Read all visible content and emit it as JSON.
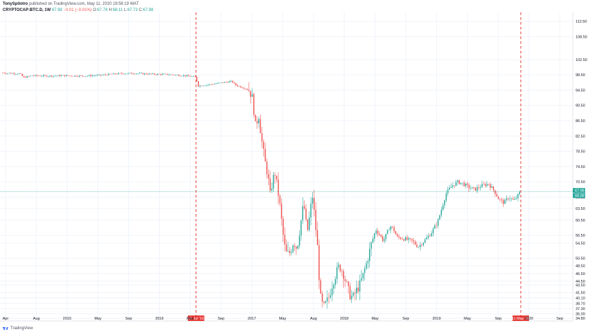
{
  "header": {
    "author": "TonySpilotro",
    "published": "published on TradingView.com, May 11, 2020 19:58:19 WAT",
    "symbol": "CRYPTOCAP:BTC.D, 1W",
    "last": "67.98",
    "change": "−0.01 (−0.01%)",
    "o_label": "O:",
    "o_value": "67.78",
    "h_label": "H:",
    "h_value": "68.11",
    "l_label": "L:",
    "l_value": "67.73",
    "c_label": "C:",
    "c_value": "67.98"
  },
  "footer": {
    "brand": "TradingView"
  },
  "colors": {
    "up": "#26a69a",
    "down": "#ef5350",
    "marker": "#e53935",
    "price_line": "#26a69a"
  },
  "chart_data": {
    "type": "candlestick",
    "title": "",
    "ylim": [
      34.8,
      114.5
    ],
    "y_ticks": [
      "112.50",
      "108.50",
      "102.50",
      "98.50",
      "94.50",
      "90.50",
      "86.50",
      "82.50",
      "78.50",
      "74.50",
      "70.50",
      "66.50",
      "63.50",
      "60.50",
      "56.50",
      "54.50",
      "50.50",
      "48.50",
      "46.50",
      "44.50",
      "43.50",
      "41.50",
      "40.10",
      "38.70",
      "37.30",
      "36.00",
      "34.80"
    ],
    "x_ticks": [
      "Apr",
      "Aug",
      "2015",
      "May",
      "Sep",
      "2016",
      "May",
      "Sep",
      "2017",
      "May",
      "Aug",
      "2018",
      "May",
      "Sep",
      "2019",
      "May",
      "Sep",
      "2020",
      "Sep"
    ],
    "markers": [
      {
        "label": "11 Jul '16",
        "t": 2016.53
      },
      {
        "label": "11 May '20",
        "t": 2020.36
      }
    ],
    "price_labels": [
      "67.98",
      "68.98"
    ],
    "current_price": 67.98,
    "x_range": [
      2014.25,
      2020.95
    ],
    "series_path": [
      [
        2014.25,
        99.0
      ],
      [
        2014.35,
        98.9
      ],
      [
        2014.45,
        98.8
      ],
      [
        2014.5,
        97.8
      ],
      [
        2014.6,
        98.3
      ],
      [
        2014.8,
        98.2
      ],
      [
        2014.95,
        98.3
      ],
      [
        2015.2,
        98.2
      ],
      [
        2015.4,
        98.4
      ],
      [
        2015.6,
        98.8
      ],
      [
        2015.8,
        98.9
      ],
      [
        2016.0,
        98.7
      ],
      [
        2016.2,
        98.6
      ],
      [
        2016.4,
        98.3
      ],
      [
        2016.53,
        97.9
      ],
      [
        2016.55,
        95.6
      ],
      [
        2016.7,
        96.0
      ],
      [
        2016.85,
        96.5
      ],
      [
        2016.95,
        96.8
      ],
      [
        2017.0,
        95.8
      ],
      [
        2017.1,
        95.0
      ],
      [
        2017.16,
        94.5
      ],
      [
        2017.2,
        92.0
      ],
      [
        2017.23,
        85.0
      ],
      [
        2017.27,
        88.0
      ],
      [
        2017.3,
        82.0
      ],
      [
        2017.34,
        76.0
      ],
      [
        2017.38,
        72.0
      ],
      [
        2017.4,
        66.5
      ],
      [
        2017.43,
        70.5
      ],
      [
        2017.46,
        73.0
      ],
      [
        2017.48,
        70.0
      ],
      [
        2017.51,
        66.0
      ],
      [
        2017.54,
        60.0
      ],
      [
        2017.57,
        54.0
      ],
      [
        2017.6,
        51.5
      ],
      [
        2017.64,
        52.0
      ],
      [
        2017.68,
        55.0
      ],
      [
        2017.72,
        53.0
      ],
      [
        2017.76,
        59.0
      ],
      [
        2017.8,
        65.0
      ],
      [
        2017.84,
        57.0
      ],
      [
        2017.88,
        63.0
      ],
      [
        2017.9,
        67.5
      ],
      [
        2017.93,
        61.0
      ],
      [
        2017.96,
        54.0
      ],
      [
        2017.98,
        46.0
      ],
      [
        2018.0,
        40.0
      ],
      [
        2018.03,
        37.5
      ],
      [
        2018.06,
        38.5
      ],
      [
        2018.1,
        40.5
      ],
      [
        2018.14,
        44.0
      ],
      [
        2018.18,
        46.5
      ],
      [
        2018.22,
        48.5
      ],
      [
        2018.26,
        47.0
      ],
      [
        2018.3,
        44.0
      ],
      [
        2018.34,
        41.0
      ],
      [
        2018.38,
        40.2
      ],
      [
        2018.42,
        42.0
      ],
      [
        2018.46,
        43.5
      ],
      [
        2018.5,
        46.0
      ],
      [
        2018.55,
        50.0
      ],
      [
        2018.6,
        54.5
      ],
      [
        2018.65,
        58.0
      ],
      [
        2018.7,
        56.5
      ],
      [
        2018.74,
        55.0
      ],
      [
        2018.78,
        57.0
      ],
      [
        2018.82,
        59.0
      ],
      [
        2018.86,
        58.0
      ],
      [
        2018.9,
        56.0
      ],
      [
        2019.0,
        55.5
      ],
      [
        2019.08,
        55.0
      ],
      [
        2019.15,
        53.5
      ],
      [
        2019.22,
        55.0
      ],
      [
        2019.3,
        57.0
      ],
      [
        2019.38,
        60.0
      ],
      [
        2019.42,
        63.0
      ],
      [
        2019.48,
        67.5
      ],
      [
        2019.55,
        69.5
      ],
      [
        2019.62,
        70.5
      ],
      [
        2019.68,
        70.0
      ],
      [
        2019.75,
        69.0
      ],
      [
        2019.82,
        68.5
      ],
      [
        2019.9,
        69.5
      ],
      [
        2019.98,
        70.0
      ],
      [
        2020.05,
        68.0
      ],
      [
        2020.1,
        66.0
      ],
      [
        2020.16,
        65.0
      ],
      [
        2020.22,
        66.5
      ],
      [
        2020.28,
        65.5
      ],
      [
        2020.33,
        67.0
      ],
      [
        2020.36,
        67.98
      ]
    ]
  }
}
